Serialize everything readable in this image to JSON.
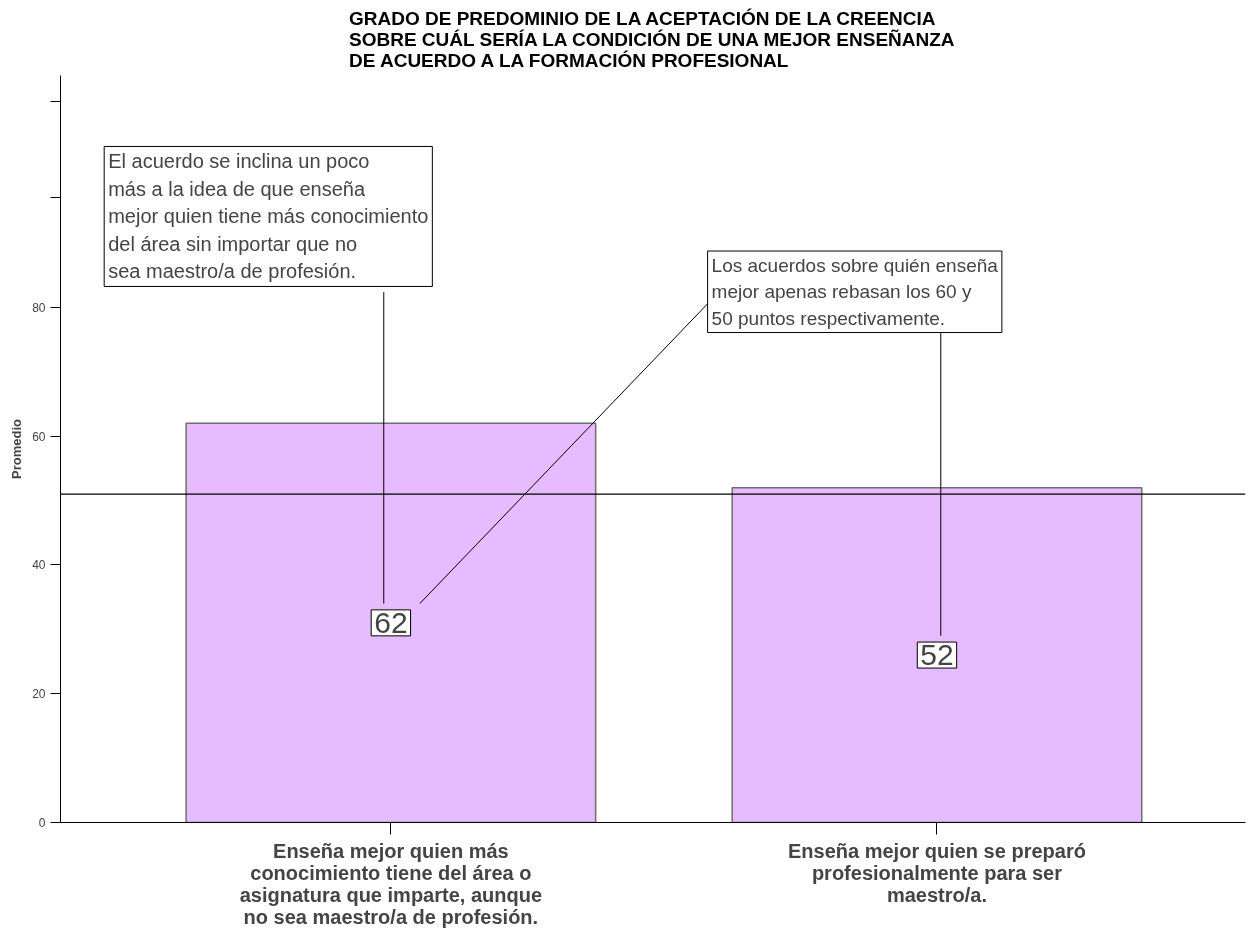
{
  "chart_data": {
    "type": "bar",
    "title": "GRADO DE PREDOMINIO DE LA ACEPTACIÓN DE LA CREENCIA\nSOBRE CUÁL SERÍA LA CONDICIÓN DE UNA MEJOR ENSEÑANZA\nDE ACUERDO A LA FORMACIÓN PROFESIONAL",
    "ylabel": "Promedio",
    "categories": [
      "Enseña mejor quien más\nconocimiento tiene del área o\nasignatura que imparte, aunque\nno sea maestro/a de profesión.",
      "Enseña mejor quien se preparó\nprofesionalmente para ser\nmaestro/a."
    ],
    "values": [
      62,
      52
    ],
    "color": "#e6bbff",
    "data_labels": true,
    "ylim": [
      0,
      116
    ],
    "yticks": [
      0,
      20,
      40,
      60,
      80,
      {
        "value": 97,
        "label": null
      },
      {
        "value": 112,
        "label": null
      }
    ],
    "ref_lines": [
      {
        "axis": "y",
        "value": 51
      }
    ],
    "annotations": [
      "El acuerdo se inclina un poco\nmás a la idea de que enseña\nmejor quien tiene más conocimiento\ndel área sin importar que no\nsea maestro/a de profesión.",
      "Los acuerdos sobre quién enseña\nmejor apenas rebasan los 60 y\n50 puntos respectivamente."
    ],
    "grid": false
  }
}
